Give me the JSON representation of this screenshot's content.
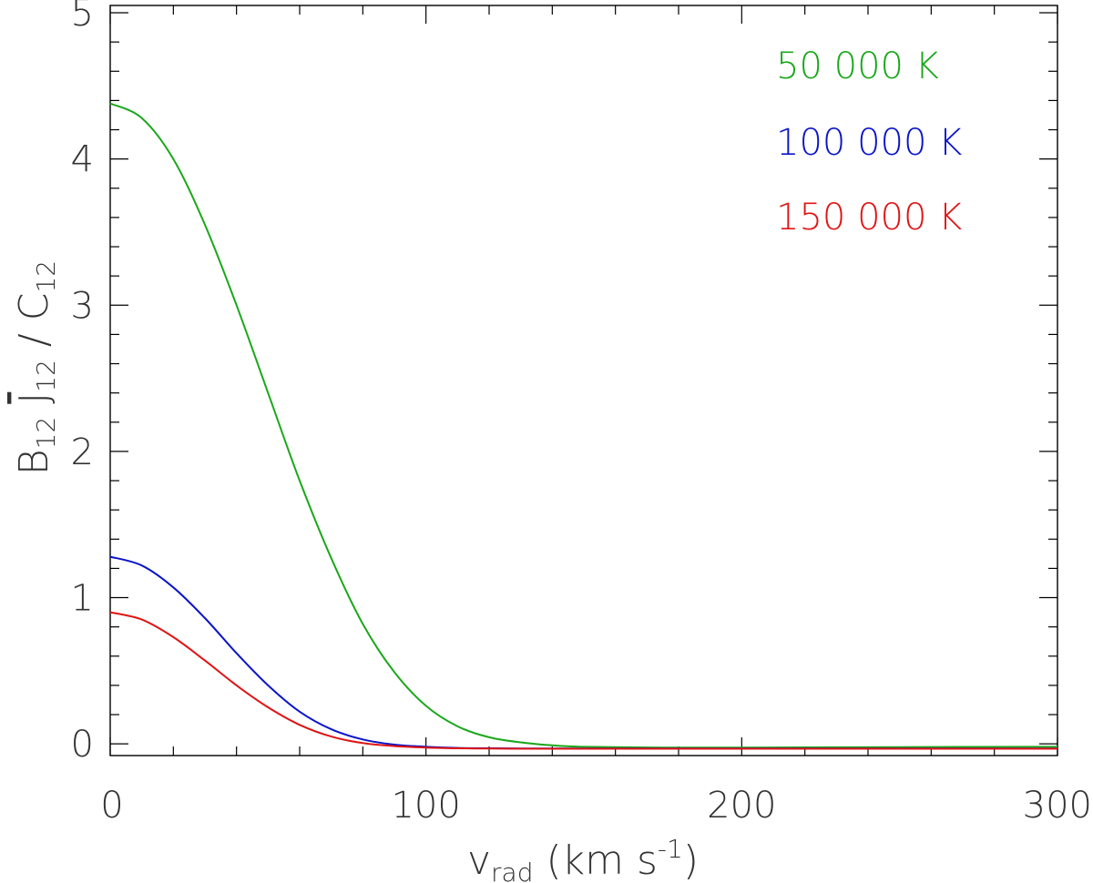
{
  "chart_data": {
    "type": "line",
    "title": "",
    "xlabel": {
      "main": "v",
      "sub": "rad",
      "unit_open": " (km s",
      "sup": "-1",
      "unit_close": ")"
    },
    "ylabel": {
      "b": "B",
      "b_sub": "12",
      "j": "J",
      "j_sub": "12",
      "slash": " / ",
      "c": "C",
      "c_sub": "12"
    },
    "xlim": [
      0,
      300
    ],
    "ylim": [
      -0.08,
      5.05
    ],
    "xticks": [
      0,
      100,
      200,
      300
    ],
    "xtick_labels": [
      "0",
      "100",
      "200",
      "300"
    ],
    "yticks": [
      0,
      1,
      2,
      3,
      4,
      5
    ],
    "ytick_labels": [
      "0",
      "1",
      "2",
      "3",
      "4",
      "5"
    ],
    "x": [
      0,
      10,
      20,
      30,
      40,
      50,
      60,
      70,
      80,
      90,
      100,
      110,
      120,
      130,
      140,
      150,
      175,
      200,
      250,
      300
    ],
    "series": [
      {
        "name": "50 000 K",
        "color": "#1aa81a",
        "values": [
          4.38,
          4.28,
          4.0,
          3.55,
          3.0,
          2.4,
          1.8,
          1.27,
          0.82,
          0.49,
          0.26,
          0.12,
          0.045,
          0.01,
          -0.01,
          -0.02,
          -0.025,
          -0.025,
          -0.022,
          -0.02
        ]
      },
      {
        "name": "100 000 K",
        "color": "#0a14c8",
        "values": [
          1.28,
          1.22,
          1.07,
          0.86,
          0.62,
          0.4,
          0.22,
          0.1,
          0.03,
          -0.005,
          -0.02,
          -0.028,
          -0.03,
          -0.032,
          -0.032,
          -0.032,
          -0.032,
          -0.032,
          -0.032,
          -0.032
        ]
      },
      {
        "name": "150 000 K",
        "color": "#e01414",
        "values": [
          0.9,
          0.85,
          0.73,
          0.57,
          0.4,
          0.25,
          0.13,
          0.05,
          0.005,
          -0.015,
          -0.025,
          -0.03,
          -0.032,
          -0.033,
          -0.033,
          -0.033,
          -0.033,
          -0.033,
          -0.033,
          -0.033
        ]
      }
    ],
    "legend_placement": "top-right",
    "grid": false
  }
}
